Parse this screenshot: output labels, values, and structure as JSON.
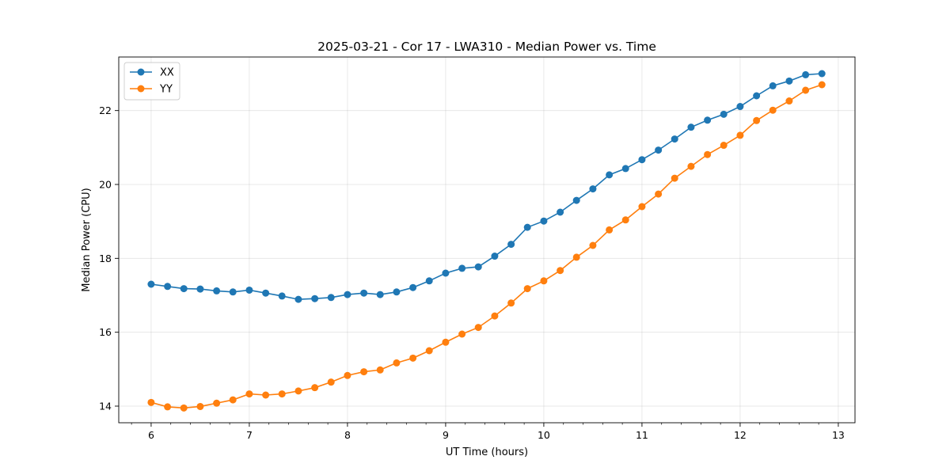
{
  "chart_data": {
    "type": "line",
    "title": "2025-03-21 - Cor 17 - LWA310 - Median Power vs. Time",
    "xlabel": "UT Time (hours)",
    "ylabel": "Median Power (CPU)",
    "xlim": [
      5.67,
      13.17
    ],
    "ylim": [
      13.55,
      23.45
    ],
    "xticks": [
      6,
      7,
      8,
      9,
      10,
      11,
      12,
      13
    ],
    "yticks": [
      14,
      16,
      18,
      20,
      22
    ],
    "xminor_step": 0.2,
    "grid": true,
    "legend_position": "top-left",
    "series": [
      {
        "name": "XX",
        "color": "#1f77b4",
        "x": [
          6.0,
          6.167,
          6.333,
          6.5,
          6.667,
          6.833,
          7.0,
          7.167,
          7.333,
          7.5,
          7.667,
          7.833,
          8.0,
          8.167,
          8.333,
          8.5,
          8.667,
          8.833,
          9.0,
          9.167,
          9.333,
          9.5,
          9.667,
          9.833,
          10.0,
          10.167,
          10.333,
          10.5,
          10.667,
          10.833,
          11.0,
          11.167,
          11.333,
          11.5,
          11.667,
          11.833,
          12.0,
          12.167,
          12.333,
          12.5,
          12.667,
          12.833
        ],
        "y": [
          17.3,
          17.24,
          17.18,
          17.17,
          17.12,
          17.09,
          17.14,
          17.06,
          16.98,
          16.89,
          16.91,
          16.94,
          17.02,
          17.06,
          17.02,
          17.09,
          17.21,
          17.39,
          17.6,
          17.73,
          17.77,
          18.06,
          18.38,
          18.84,
          19.01,
          19.25,
          19.57,
          19.88,
          20.26,
          20.43,
          20.67,
          20.93,
          21.23,
          21.55,
          21.74,
          21.9,
          22.11,
          22.4,
          22.67,
          22.8,
          22.97,
          23.0
        ]
      },
      {
        "name": "YY",
        "color": "#ff7f0e",
        "x": [
          6.0,
          6.167,
          6.333,
          6.5,
          6.667,
          6.833,
          7.0,
          7.167,
          7.333,
          7.5,
          7.667,
          7.833,
          8.0,
          8.167,
          8.333,
          8.5,
          8.667,
          8.833,
          9.0,
          9.167,
          9.333,
          9.5,
          9.667,
          9.833,
          10.0,
          10.167,
          10.333,
          10.5,
          10.667,
          10.833,
          11.0,
          11.167,
          11.333,
          11.5,
          11.667,
          11.833,
          12.0,
          12.167,
          12.333,
          12.5,
          12.667,
          12.833
        ],
        "y": [
          14.1,
          13.98,
          13.95,
          13.99,
          14.08,
          14.17,
          14.33,
          14.3,
          14.33,
          14.41,
          14.5,
          14.65,
          14.83,
          14.93,
          14.98,
          15.17,
          15.3,
          15.5,
          15.73,
          15.95,
          16.13,
          16.44,
          16.79,
          17.18,
          17.39,
          17.67,
          18.03,
          18.35,
          18.77,
          19.04,
          19.4,
          19.74,
          20.17,
          20.49,
          20.81,
          21.06,
          21.33,
          21.73,
          22.01,
          22.26,
          22.55,
          22.7
        ]
      }
    ]
  }
}
